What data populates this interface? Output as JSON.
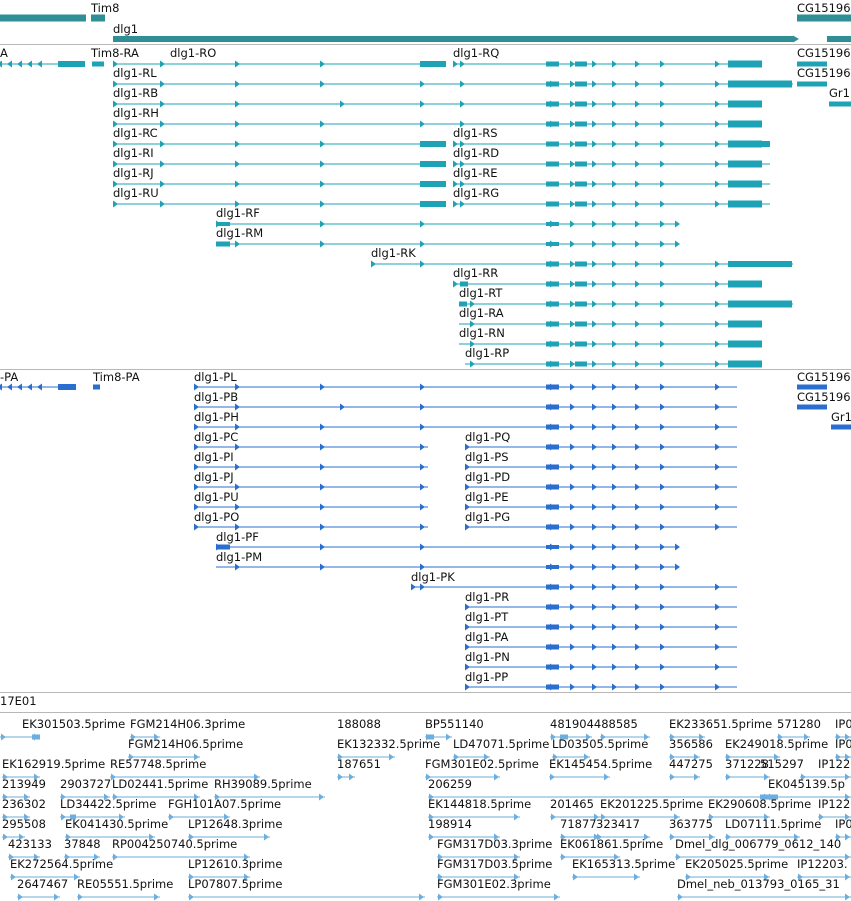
{
  "colors": {
    "gene": "#2f8f94",
    "transcript": "#1ea3b6",
    "cds": "#2a6fd0",
    "est": "#6eaede",
    "separator": "#b8b8b8"
  },
  "genes_track": {
    "labels": [
      "Tim8",
      "dlg1",
      "CG15196"
    ]
  },
  "transcripts_track": {
    "left_label": "A",
    "labels": [
      "Tim8-RA",
      "dlg1-RO",
      "dlg1-RQ",
      "CG15196",
      "dlg1-RL",
      "CG15196",
      "dlg1-RB",
      "Gr1",
      "dlg1-RH",
      "dlg1-RC",
      "dlg1-RS",
      "dlg1-RI",
      "dlg1-RD",
      "dlg1-RJ",
      "dlg1-RE",
      "dlg1-RU",
      "dlg1-RG",
      "dlg1-RF",
      "dlg1-RM",
      "dlg1-RK",
      "dlg1-RR",
      "dlg1-RT",
      "dlg1-RA",
      "dlg1-RN",
      "dlg1-RP"
    ]
  },
  "proteins_track": {
    "left_label": "-PA",
    "labels": [
      "Tim8-PA",
      "dlg1-PL",
      "CG15196",
      "dlg1-PB",
      "CG15196",
      "dlg1-PH",
      "Gr1",
      "dlg1-PC",
      "dlg1-PQ",
      "dlg1-PI",
      "dlg1-PS",
      "dlg1-PJ",
      "dlg1-PD",
      "dlg1-PU",
      "dlg1-PE",
      "dlg1-PO",
      "dlg1-PG",
      "dlg1-PF",
      "dlg1-PM",
      "dlg1-PK",
      "dlg1-PR",
      "dlg1-PT",
      "dlg1-PA",
      "dlg1-PN",
      "dlg1-PP"
    ]
  },
  "est_track": {
    "header": "17E01",
    "labels": [
      "EK301503.5prime",
      "FGM214H06.3prime",
      "188088",
      "BP551140",
      "481904488585",
      "EK233651.5prime",
      "571280",
      "IP0",
      "FGM214H06.5prime",
      "EK132332.5prime",
      "LD47071.5prime",
      "LD03505.5prime",
      "356586",
      "EK249018.5prime",
      "IP0",
      "EK162919.5prime",
      "RE57748.5prime",
      "187651",
      "FGM301E02.5prime",
      "EK145454.5prime",
      "447275",
      "371228",
      "515297",
      "IP122",
      "213949",
      "2903727",
      "LD02441.5prime",
      "RH39089.5prime",
      "206259",
      "EK045139.5p",
      "236302",
      "LD34422.5prime",
      "FGH101A07.5prime",
      "EK144818.5prime",
      "201465",
      "EK201225.5prime",
      "EK290608.5prime",
      "IP122",
      "295508",
      "EK041430.5prime",
      "LP12648.3prime",
      "198914",
      "71877",
      "323417",
      "363775",
      "LD07111.5prime",
      "IP0",
      "423133",
      "37848",
      "RP004250740.5prime",
      "FGM317D03.3prime",
      "EK061861.5prime",
      "Dmel_dlg_006779_0612_140",
      "EK272564.5prime",
      "LP12610.3prime",
      "FGM317D03.5prime",
      "EK165313.5prime",
      "EK205025.5prime",
      "IP12203.",
      "2647467",
      "RE05551.5prime",
      "LP07807.5prime",
      "FGM301E02.3prime",
      "Dmel_neb_013793_0165_31"
    ]
  }
}
